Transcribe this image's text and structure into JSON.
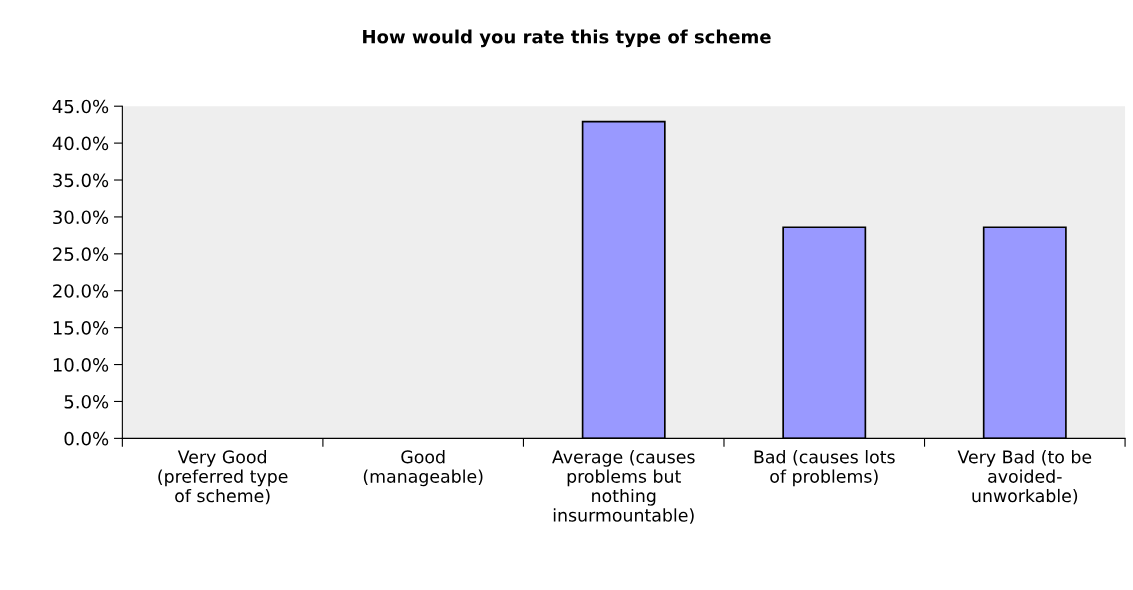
{
  "chart_data": {
    "type": "bar",
    "title": "How would you rate this type of scheme",
    "categories": [
      "Very Good\n(preferred type\nof scheme)",
      "Good\n(manageable)",
      "Average (causes\nproblems but\nnothing\ninsurmountable)",
      "Bad (causes lots\nof problems)",
      "Very Bad (to be\navoided-\nunworkable)"
    ],
    "values": [
      0,
      0,
      42.9,
      28.6,
      28.6
    ],
    "color": "#9999ff",
    "ylim": [
      0,
      45
    ],
    "yticks": [
      {
        "value": 0,
        "label": "0.0%"
      },
      {
        "value": 5,
        "label": "5.0%"
      },
      {
        "value": 10,
        "label": "10.0%"
      },
      {
        "value": 15,
        "label": "15.0%"
      },
      {
        "value": 20,
        "label": "20.0%"
      },
      {
        "value": 25,
        "label": "25.0%"
      },
      {
        "value": 30,
        "label": "30.0%"
      },
      {
        "value": 35,
        "label": "35.0%"
      },
      {
        "value": 40,
        "label": "40.0%"
      },
      {
        "value": 45,
        "label": "45.0%"
      }
    ],
    "grid": false,
    "legend": false
  }
}
